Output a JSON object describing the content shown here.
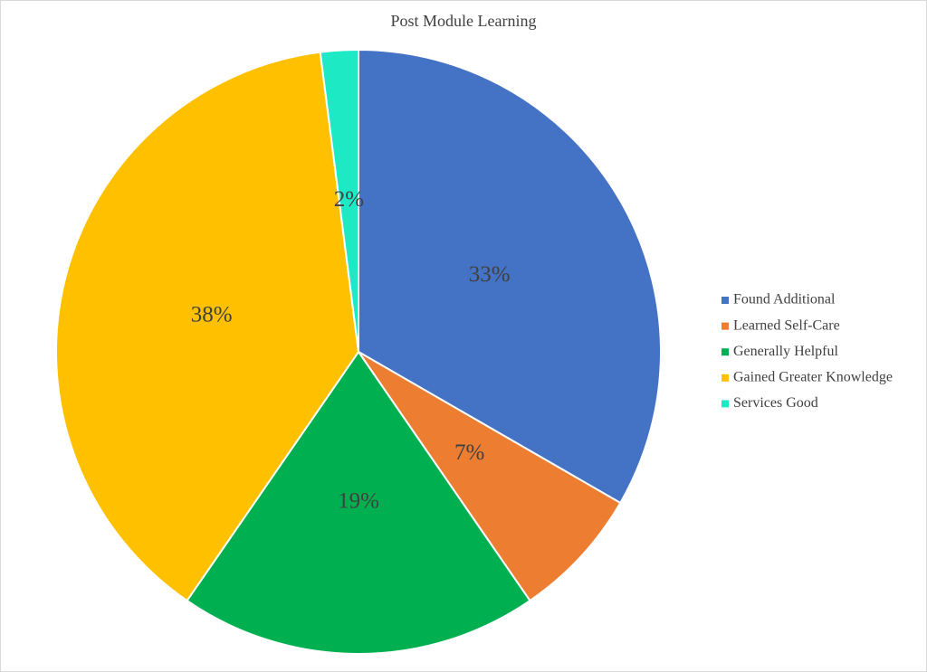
{
  "chart_data": {
    "type": "pie",
    "title": "Post Module Learning",
    "categories": [
      "Found Additional",
      "Learned Self-Care",
      "Generally Helpful",
      "Gained Greater Knowledge",
      "Services Good"
    ],
    "values": [
      33,
      7,
      19,
      38,
      2
    ],
    "value_labels": [
      "33%",
      "7%",
      "19%",
      "38%",
      "2%"
    ],
    "colors": [
      "#4472c4",
      "#ed7d31",
      "#00b050",
      "#ffc000",
      "#1de9c5"
    ],
    "legend": "right"
  }
}
